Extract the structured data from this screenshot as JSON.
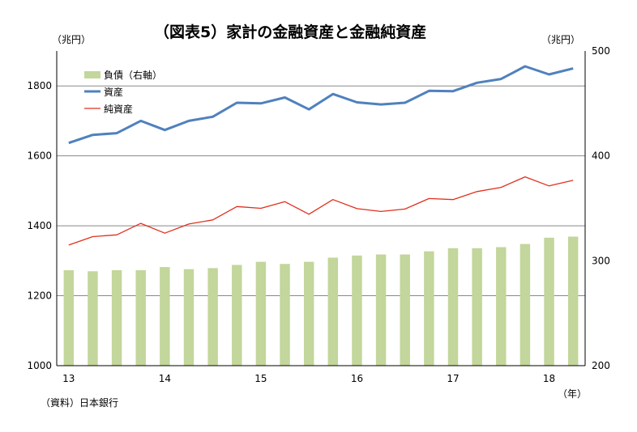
{
  "chart_data": {
    "type": "bar+line",
    "title": "（図表5）家計の金融資産と金融純資産",
    "left_unit": "（兆円）",
    "right_unit": "（兆円）",
    "x_unit": "（年）",
    "source": "（資料）日本銀行",
    "left_axis": {
      "min": 1000,
      "max": 1900,
      "ticks": [
        1000,
        1200,
        1400,
        1600,
        1800
      ]
    },
    "right_axis": {
      "min": 200,
      "max": 500,
      "ticks": [
        200,
        300,
        400,
        500
      ]
    },
    "x_ticks": [
      {
        "label": "13",
        "index": 0
      },
      {
        "label": "14",
        "index": 4
      },
      {
        "label": "15",
        "index": 8
      },
      {
        "label": "16",
        "index": 12
      },
      {
        "label": "17",
        "index": 16
      },
      {
        "label": "18",
        "index": 20
      }
    ],
    "grid": "horizontal at left-axis ticks",
    "legend_position": "top-left",
    "series": [
      {
        "name": "負債（右軸）",
        "type": "bar",
        "axis": "right",
        "color": "#c3d69b",
        "values": [
          291,
          290,
          291,
          291,
          294,
          292,
          293,
          296,
          299,
          297,
          299,
          303,
          305,
          306,
          306,
          309,
          312,
          312,
          313,
          316,
          322,
          323
        ]
      },
      {
        "name": "資産",
        "type": "line",
        "axis": "left",
        "color": "#4f81bd",
        "values": [
          1637,
          1660,
          1665,
          1700,
          1674,
          1700,
          1712,
          1752,
          1750,
          1767,
          1733,
          1777,
          1753,
          1747,
          1752,
          1786,
          1785,
          1809,
          1820,
          1856,
          1833,
          1850
        ]
      },
      {
        "name": "純資産",
        "type": "line",
        "axis": "left",
        "color": "#e0301e",
        "values": [
          1345,
          1369,
          1374,
          1407,
          1379,
          1405,
          1417,
          1455,
          1450,
          1469,
          1433,
          1475,
          1449,
          1441,
          1448,
          1478,
          1475,
          1498,
          1510,
          1540,
          1514,
          1530
        ]
      }
    ]
  }
}
